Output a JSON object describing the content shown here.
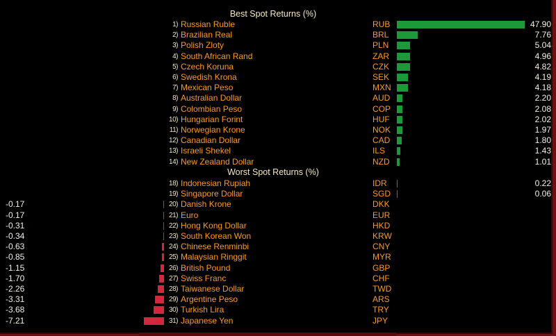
{
  "headings": {
    "best": "Best Spot Returns (%)",
    "worst": "Worst Spot Returns (%)"
  },
  "colors": {
    "positive_bar": "#1c9a3a",
    "negative_bar": "#d0283c",
    "name_text": "#ff9a1f",
    "background": "#000000"
  },
  "best": [
    {
      "rank": "1)",
      "name": "Russian Ruble",
      "code": "RUB",
      "value": "47.90"
    },
    {
      "rank": "2)",
      "name": "Brazilian Real",
      "code": "BRL",
      "value": "7.76"
    },
    {
      "rank": "3)",
      "name": "Polish Zloty",
      "code": "PLN",
      "value": "5.04"
    },
    {
      "rank": "4)",
      "name": "South African Rand",
      "code": "ZAR",
      "value": "4.96"
    },
    {
      "rank": "5)",
      "name": "Czech Koruna",
      "code": "CZK",
      "value": "4.82"
    },
    {
      "rank": "6)",
      "name": "Swedish Krona",
      "code": "SEK",
      "value": "4.19"
    },
    {
      "rank": "7)",
      "name": "Mexican Peso",
      "code": "MXN",
      "value": "4.18"
    },
    {
      "rank": "8)",
      "name": "Australian Dollar",
      "code": "AUD",
      "value": "2.20"
    },
    {
      "rank": "9)",
      "name": "Colombian Peso",
      "code": "COP",
      "value": "2.08"
    },
    {
      "rank": "10)",
      "name": "Hungarian Forint",
      "code": "HUF",
      "value": "2.02"
    },
    {
      "rank": "11)",
      "name": "Norwegian Krone",
      "code": "NOK",
      "value": "1.97"
    },
    {
      "rank": "12)",
      "name": "Canadian Dollar",
      "code": "CAD",
      "value": "1.80"
    },
    {
      "rank": "13)",
      "name": "Israeli Shekel",
      "code": "ILS",
      "value": "1.43"
    },
    {
      "rank": "14)",
      "name": "New Zealand Dollar",
      "code": "NZD",
      "value": "1.01"
    }
  ],
  "worst": [
    {
      "rank": "18)",
      "name": "Indonesian Rupiah",
      "code": "IDR",
      "value": "0.22"
    },
    {
      "rank": "19)",
      "name": "Singapore Dollar",
      "code": "SGD",
      "value": "0.06"
    },
    {
      "rank": "20)",
      "name": "Danish Krone",
      "code": "DKK",
      "value": "-0.17"
    },
    {
      "rank": "21)",
      "name": "Euro",
      "code": "EUR",
      "value": "-0.17"
    },
    {
      "rank": "22)",
      "name": "Hong Kong Dollar",
      "code": "HKD",
      "value": "-0.31"
    },
    {
      "rank": "23)",
      "name": "South Korean Won",
      "code": "KRW",
      "value": "-0.34"
    },
    {
      "rank": "24)",
      "name": "Chinese Renminbi",
      "code": "CNY",
      "value": "-0.63"
    },
    {
      "rank": "25)",
      "name": "Malaysian Ringgit",
      "code": "MYR",
      "value": "-0.85"
    },
    {
      "rank": "26)",
      "name": "British Pound",
      "code": "GBP",
      "value": "-1.15"
    },
    {
      "rank": "27)",
      "name": "Swiss Franc",
      "code": "CHF",
      "value": "-1.70"
    },
    {
      "rank": "28)",
      "name": "Taiwanese Dollar",
      "code": "TWD",
      "value": "-2.26"
    },
    {
      "rank": "29)",
      "name": "Argentine Peso",
      "code": "ARS",
      "value": "-3.31"
    },
    {
      "rank": "30)",
      "name": "Turkish Lira",
      "code": "TRY",
      "value": "-3.68"
    },
    {
      "rank": "31)",
      "name": "Japanese Yen",
      "code": "JPY",
      "value": "-7.21"
    }
  ]
}
